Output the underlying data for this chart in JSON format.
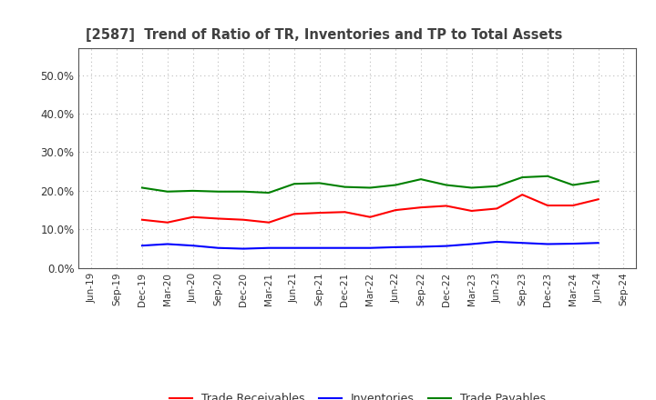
{
  "title": "[2587]  Trend of Ratio of TR, Inventories and TP to Total Assets",
  "x_labels": [
    "Jun-19",
    "Sep-19",
    "Dec-19",
    "Mar-20",
    "Jun-20",
    "Sep-20",
    "Dec-20",
    "Mar-21",
    "Jun-21",
    "Sep-21",
    "Dec-21",
    "Mar-22",
    "Jun-22",
    "Sep-22",
    "Dec-22",
    "Mar-23",
    "Jun-23",
    "Sep-23",
    "Dec-23",
    "Mar-24",
    "Jun-24",
    "Sep-24"
  ],
  "trade_receivables": [
    null,
    null,
    12.5,
    11.8,
    13.2,
    12.8,
    12.5,
    11.8,
    14.0,
    14.3,
    14.5,
    13.2,
    15.0,
    15.7,
    16.1,
    14.8,
    15.4,
    19.0,
    16.2,
    16.2,
    17.8,
    null
  ],
  "inventories": [
    null,
    null,
    5.8,
    6.2,
    5.8,
    5.2,
    5.0,
    5.2,
    5.2,
    5.2,
    5.2,
    5.2,
    5.4,
    5.5,
    5.7,
    6.2,
    6.8,
    6.5,
    6.2,
    6.3,
    6.5,
    null
  ],
  "trade_payables": [
    null,
    null,
    20.8,
    19.8,
    20.0,
    19.8,
    19.8,
    19.5,
    21.8,
    22.0,
    21.0,
    20.8,
    21.5,
    23.0,
    21.5,
    20.8,
    21.2,
    23.5,
    23.8,
    21.5,
    22.5,
    null
  ],
  "colors": {
    "trade_receivables": "#FF0000",
    "inventories": "#0000FF",
    "trade_payables": "#008000"
  },
  "ylim_max": 0.57,
  "yticks": [
    0.0,
    0.1,
    0.2,
    0.3,
    0.4,
    0.5
  ],
  "background_color": "#FFFFFF",
  "grid_color": "#BBBBBB",
  "title_color": "#404040",
  "line_width": 1.5
}
